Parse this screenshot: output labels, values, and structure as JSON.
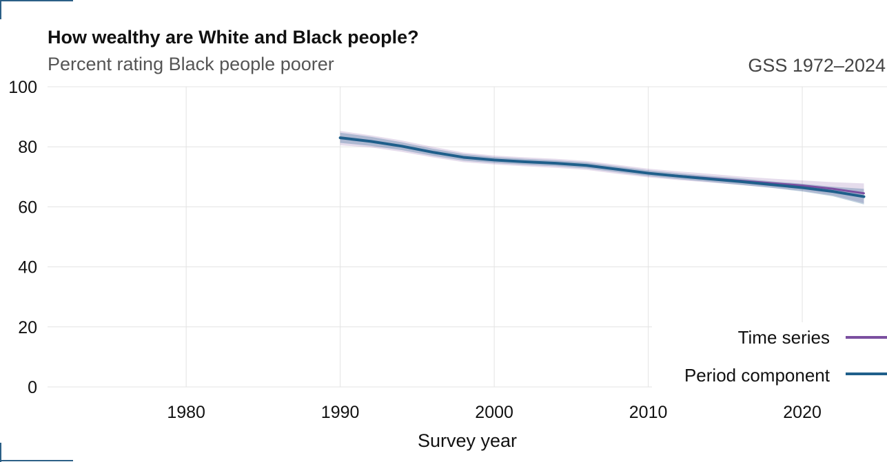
{
  "chart_data": {
    "type": "line",
    "title": "How wealthy are White and Black people?",
    "subtitle": "Percent rating Black people poorer",
    "caption": "GSS 1972–2024",
    "xlabel": "Survey year",
    "ylabel": "",
    "xlim": [
      1971,
      2025.5
    ],
    "ylim": [
      0,
      100
    ],
    "x_ticks": [
      1980,
      1990,
      2000,
      2010,
      2020
    ],
    "y_ticks": [
      0,
      20,
      40,
      60,
      80,
      100
    ],
    "grid": true,
    "legend_position": "bottom-right",
    "x": [
      1990,
      1992,
      1994,
      1996,
      1998,
      2000,
      2002,
      2004,
      2006,
      2008,
      2010,
      2012,
      2014,
      2016,
      2018,
      2020,
      2022,
      2024
    ],
    "series": [
      {
        "name": "Time series",
        "color": "#7b4fa0",
        "values": [
          83.0,
          81.8,
          80.2,
          78.2,
          76.5,
          75.6,
          75.0,
          74.5,
          73.8,
          72.5,
          71.2,
          70.3,
          69.5,
          68.7,
          67.9,
          67.1,
          66.0,
          64.5
        ],
        "lower": [
          80.5,
          79.8,
          78.3,
          76.5,
          74.9,
          74.1,
          73.5,
          73.0,
          72.3,
          71.0,
          69.8,
          68.9,
          68.1,
          67.3,
          66.4,
          65.3,
          63.8,
          61.2
        ],
        "upper": [
          85.3,
          83.8,
          82.1,
          80.0,
          78.1,
          77.1,
          76.5,
          76.0,
          75.3,
          74.0,
          72.7,
          71.8,
          71.0,
          70.1,
          69.4,
          68.8,
          68.2,
          67.8
        ]
      },
      {
        "name": "Period component",
        "color": "#1f5f8b",
        "values": [
          83.0,
          81.8,
          80.2,
          78.2,
          76.5,
          75.6,
          75.0,
          74.5,
          73.8,
          72.5,
          71.2,
          70.2,
          69.3,
          68.4,
          67.4,
          66.4,
          65.1,
          63.4
        ],
        "lower": [
          81.3,
          80.3,
          78.9,
          77.0,
          75.4,
          74.6,
          74.0,
          73.5,
          72.8,
          71.5,
          70.2,
          69.2,
          68.3,
          67.3,
          66.3,
          65.1,
          63.5,
          60.8
        ],
        "upper": [
          84.7,
          83.3,
          81.5,
          79.4,
          77.6,
          76.6,
          76.0,
          75.5,
          74.8,
          73.5,
          72.2,
          71.2,
          70.3,
          69.5,
          68.5,
          67.7,
          66.7,
          66.0
        ]
      }
    ]
  }
}
